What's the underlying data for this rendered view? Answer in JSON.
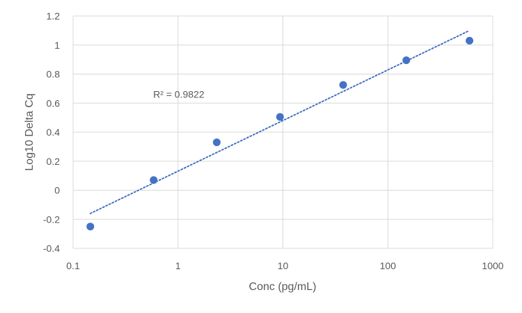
{
  "chart_data": {
    "type": "scatter",
    "title": "",
    "xlabel": "Conc (pg/mL)",
    "ylabel": "Log10 Delta Cq",
    "x_scale": "log",
    "xlim": [
      0.1,
      1000
    ],
    "ylim": [
      -0.4,
      1.2
    ],
    "x_ticks": [
      0.1,
      1,
      10,
      100,
      1000
    ],
    "x_tick_labels": [
      "0.1",
      "1",
      "10",
      "100",
      "1000"
    ],
    "y_ticks": [
      -0.4,
      -0.2,
      0,
      0.2,
      0.4,
      0.6,
      0.8,
      1,
      1.2
    ],
    "y_tick_labels": [
      "-0.4",
      "-0.2",
      "0",
      "0.2",
      "0.4",
      "0.6",
      "0.8",
      "1",
      "1.2"
    ],
    "grid": true,
    "series": [
      {
        "x": [
          0.146,
          0.586,
          2.34,
          9.38,
          37.5,
          150,
          600
        ],
        "y": [
          -0.25,
          0.07,
          0.33,
          0.505,
          0.725,
          0.895,
          1.03
        ],
        "color": "#4472C4"
      }
    ],
    "trendline": {
      "type": "logarithmic",
      "style": "dotted",
      "color": "#4472C4",
      "x": [
        0.146,
        600
      ],
      "y": [
        -0.16,
        1.1
      ]
    },
    "annotations": [
      {
        "text": "R² = 0.9822",
        "x": 0.58,
        "y": 0.66
      }
    ]
  }
}
